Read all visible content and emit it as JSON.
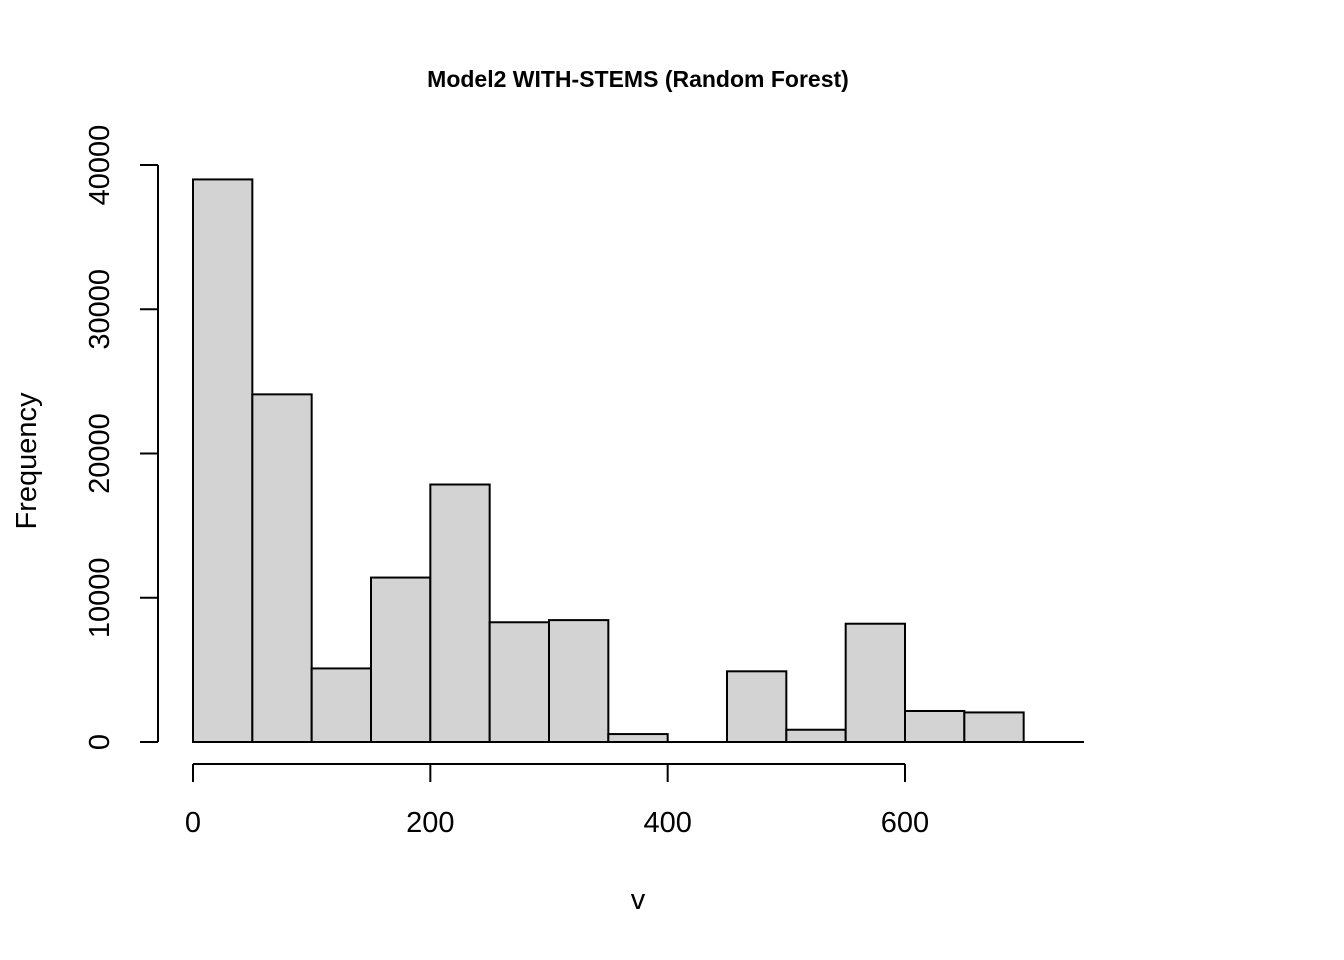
{
  "chart_data": {
    "type": "bar",
    "subtype": "histogram",
    "title": "Model2 WITH-STEMS (Random Forest)",
    "xlabel": "v",
    "ylabel": "Frequency",
    "bin_width": 50,
    "bins": [
      {
        "x0": 0,
        "x1": 50,
        "count": 39000
      },
      {
        "x0": 50,
        "x1": 100,
        "count": 24100
      },
      {
        "x0": 100,
        "x1": 150,
        "count": 5100
      },
      {
        "x0": 150,
        "x1": 200,
        "count": 11400
      },
      {
        "x0": 200,
        "x1": 250,
        "count": 17850
      },
      {
        "x0": 250,
        "x1": 300,
        "count": 8300
      },
      {
        "x0": 300,
        "x1": 350,
        "count": 8450
      },
      {
        "x0": 350,
        "x1": 400,
        "count": 550
      },
      {
        "x0": 400,
        "x1": 450,
        "count": 0
      },
      {
        "x0": 450,
        "x1": 500,
        "count": 4900
      },
      {
        "x0": 500,
        "x1": 550,
        "count": 850
      },
      {
        "x0": 550,
        "x1": 600,
        "count": 8200
      },
      {
        "x0": 600,
        "x1": 650,
        "count": 2150
      },
      {
        "x0": 650,
        "x1": 700,
        "count": 2050
      }
    ],
    "x_ticks": [
      0,
      200,
      400,
      600
    ],
    "x_tick_labels": [
      "0",
      "200",
      "400",
      "600"
    ],
    "y_ticks": [
      0,
      10000,
      20000,
      30000,
      40000
    ],
    "y_tick_labels": [
      "0",
      "10000",
      "20000",
      "30000",
      "40000"
    ],
    "xlim": [
      0,
      750
    ],
    "ylim": [
      0,
      40000
    ],
    "grid": false,
    "legend": "none",
    "bar_color": "#d3d3d3",
    "edge_color": "#000000"
  }
}
